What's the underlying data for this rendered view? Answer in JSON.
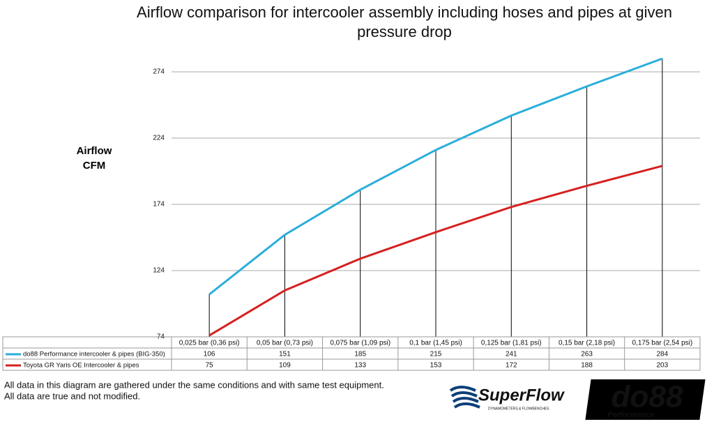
{
  "chart_data": {
    "type": "line",
    "title": "Airflow comparison for intercooler assembly including hoses and pipes at given pressure drop",
    "y_label": "Airflow CFM",
    "categories": [
      "0,025 bar (0,36 psi)",
      "0,05 bar (0,73 psi)",
      "0,075 bar (1,09 psi)",
      "0,1 bar (1,45 psi)",
      "0,125 bar (1,81 psi)",
      "0,15 bar (2,18 psi)",
      "0,175 bar (2,54 psi)"
    ],
    "series": [
      {
        "name": "do88 Performance intercooler & pipes (BIG-350)",
        "color": "#2aaedb",
        "values": [
          106,
          151,
          185,
          215,
          241,
          263,
          284
        ]
      },
      {
        "name": "Toyota GR Yaris OE Intercooler & pipes",
        "color": "#d62020",
        "values": [
          75,
          109,
          133,
          153,
          172,
          188,
          203
        ]
      }
    ],
    "ylim": [
      74,
      284
    ],
    "yticks": [
      74,
      124,
      174,
      224,
      274
    ],
    "grid": true
  },
  "footer": {
    "notes": [
      "All data in this diagram are gathered under the same conditions and with same test equipment.",
      "All data are true and not modified."
    ],
    "logos": {
      "superflow": "SuperFlow",
      "superflow_sub": "DYNAMOMETERS & FLOWBENCHES",
      "do88": "do88",
      "do88_sub": "Performance"
    }
  }
}
